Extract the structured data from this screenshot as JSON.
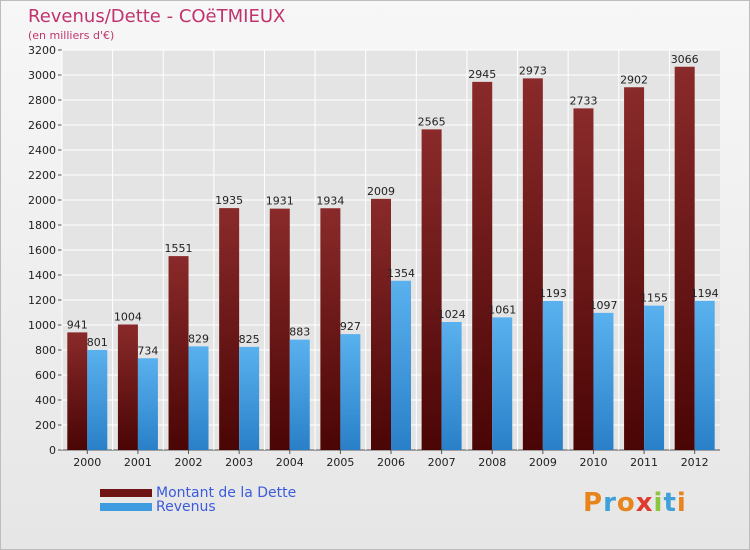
{
  "header": {
    "title": "Revenus/Dette - COëTMIEUX",
    "subtitle": "(en milliers d'€)"
  },
  "colors": {
    "dette": "#7a1a1a",
    "revenus": "#3f9be0",
    "title": "#c0336e",
    "grid": "#ffffff"
  },
  "legend": {
    "items": [
      {
        "label": "Montant de la Dette",
        "color": "#6e1414"
      },
      {
        "label": "Revenus",
        "color": "#3f9be0"
      }
    ]
  },
  "logo": {
    "text": "Proxiti",
    "letter_colors": [
      "#e8841c",
      "#3fa1d8",
      "#e8841c",
      "#e03a2e",
      "#8cc63f",
      "#3fa1d8",
      "#e8841c"
    ]
  },
  "chart_data": {
    "type": "bar",
    "categories": [
      "2000",
      "2001",
      "2002",
      "2003",
      "2004",
      "2005",
      "2006",
      "2007",
      "2008",
      "2009",
      "2010",
      "2011",
      "2012"
    ],
    "series": [
      {
        "name": "Montant de la Dette",
        "values": [
          941,
          1004,
          1551,
          1935,
          1931,
          1934,
          2009,
          2565,
          2945,
          2973,
          2733,
          2902,
          3066
        ]
      },
      {
        "name": "Revenus",
        "values": [
          801,
          734,
          829,
          825,
          883,
          927,
          1354,
          1024,
          1061,
          1193,
          1097,
          1155,
          1194
        ]
      }
    ],
    "ylim": [
      0,
      3200
    ],
    "yticks": [
      0,
      200,
      400,
      600,
      800,
      1000,
      1200,
      1400,
      1600,
      1800,
      2000,
      2200,
      2400,
      2600,
      2800,
      3000,
      3200
    ],
    "grid": true,
    "legend_position": "bottom-left"
  }
}
